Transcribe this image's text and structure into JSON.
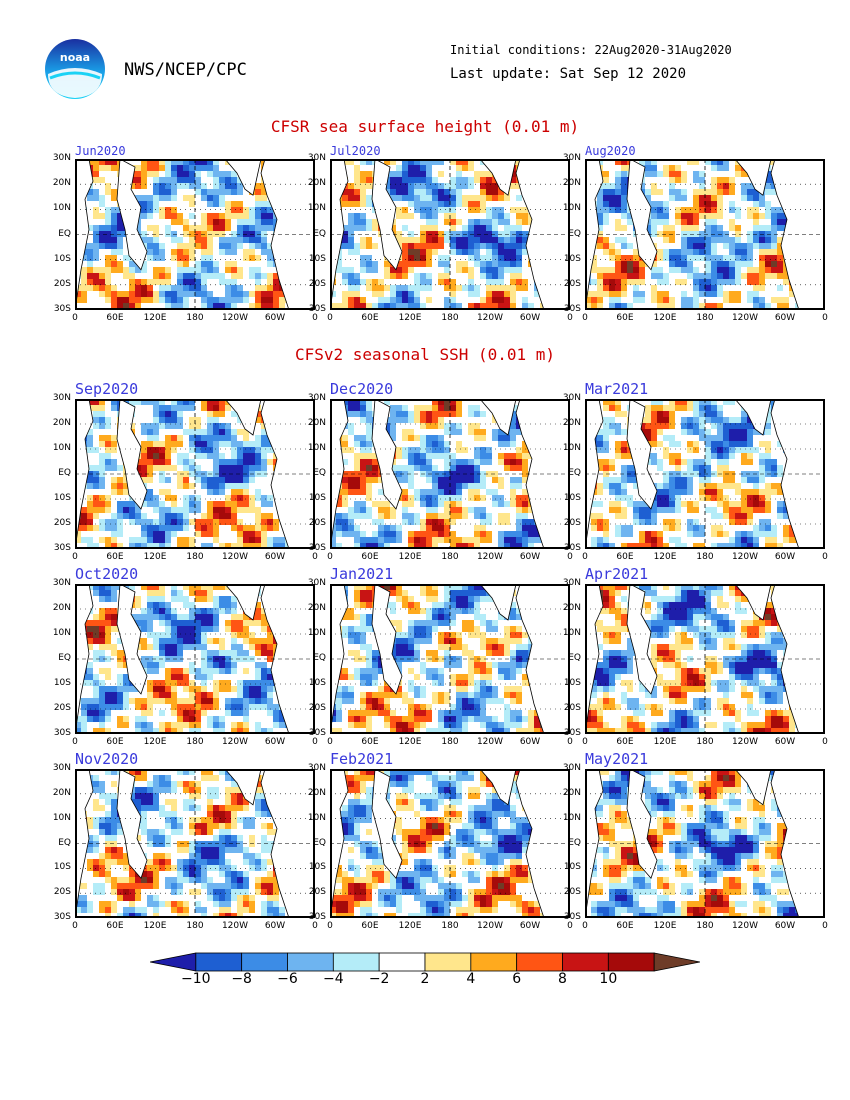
{
  "header": {
    "logo_text": "noaa",
    "agency": "NWS/NCEP/CPC",
    "initial_conditions": "Initial conditions: 22Aug2020-31Aug2020",
    "last_update": "Last update: Sat Sep 12 2020"
  },
  "sections": [
    {
      "title": "CFSR sea surface height (0.01 m)"
    },
    {
      "title": "CFSv2 seasonal SSH (0.01 m)"
    }
  ],
  "chart_data": [
    {
      "type": "heatmap",
      "title": "Jun2020",
      "field": "sea surface height anomaly",
      "units": "0.01 m",
      "xticks": [
        "0",
        "60E",
        "120E",
        "180",
        "120W",
        "60W",
        "0"
      ],
      "yticks": [
        "30N",
        "20N",
        "10N",
        "EQ",
        "10S",
        "20S",
        "30S"
      ],
      "ylim": [
        -30,
        30
      ]
    },
    {
      "type": "heatmap",
      "title": "Jul2020",
      "field": "sea surface height anomaly",
      "units": "0.01 m",
      "xticks": [
        "0",
        "60E",
        "120E",
        "180",
        "120W",
        "60W",
        "0"
      ],
      "yticks": [
        "30N",
        "20N",
        "10N",
        "EQ",
        "10S",
        "20S",
        "30S"
      ],
      "ylim": [
        -30,
        30
      ]
    },
    {
      "type": "heatmap",
      "title": "Aug2020",
      "field": "sea surface height anomaly",
      "units": "0.01 m",
      "xticks": [
        "0",
        "60E",
        "120E",
        "180",
        "120W",
        "60W",
        "0"
      ],
      "yticks": [
        "30N",
        "20N",
        "10N",
        "EQ",
        "10S",
        "20S",
        "30S"
      ],
      "ylim": [
        -30,
        30
      ]
    },
    {
      "type": "heatmap",
      "title": "Sep2020",
      "field": "forecast SSH anomaly",
      "units": "0.01 m",
      "xticks": [
        "0",
        "60E",
        "120E",
        "180",
        "120W",
        "60W",
        "0"
      ],
      "yticks": [
        "30N",
        "20N",
        "10N",
        "EQ",
        "10S",
        "20S",
        "30S"
      ],
      "ylim": [
        -30,
        30
      ]
    },
    {
      "type": "heatmap",
      "title": "Dec2020",
      "field": "forecast SSH anomaly",
      "units": "0.01 m",
      "xticks": [
        "0",
        "60E",
        "120E",
        "180",
        "120W",
        "60W",
        "0"
      ],
      "yticks": [
        "30N",
        "20N",
        "10N",
        "EQ",
        "10S",
        "20S",
        "30S"
      ],
      "ylim": [
        -30,
        30
      ]
    },
    {
      "type": "heatmap",
      "title": "Mar2021",
      "field": "forecast SSH anomaly",
      "units": "0.01 m",
      "xticks": [
        "0",
        "60E",
        "120E",
        "180",
        "120W",
        "60W",
        "0"
      ],
      "yticks": [
        "30N",
        "20N",
        "10N",
        "EQ",
        "10S",
        "20S",
        "30S"
      ],
      "ylim": [
        -30,
        30
      ]
    },
    {
      "type": "heatmap",
      "title": "Oct2020",
      "field": "forecast SSH anomaly",
      "units": "0.01 m",
      "xticks": [
        "0",
        "60E",
        "120E",
        "180",
        "120W",
        "60W",
        "0"
      ],
      "yticks": [
        "30N",
        "20N",
        "10N",
        "EQ",
        "10S",
        "20S",
        "30S"
      ],
      "ylim": [
        -30,
        30
      ]
    },
    {
      "type": "heatmap",
      "title": "Jan2021",
      "field": "forecast SSH anomaly",
      "units": "0.01 m",
      "xticks": [
        "0",
        "60E",
        "120E",
        "180",
        "120W",
        "60W",
        "0"
      ],
      "yticks": [
        "30N",
        "20N",
        "10N",
        "EQ",
        "10S",
        "20S",
        "30S"
      ],
      "ylim": [
        -30,
        30
      ]
    },
    {
      "type": "heatmap",
      "title": "Apr2021",
      "field": "forecast SSH anomaly",
      "units": "0.01 m",
      "xticks": [
        "0",
        "60E",
        "120E",
        "180",
        "120W",
        "60W",
        "0"
      ],
      "yticks": [
        "30N",
        "20N",
        "10N",
        "EQ",
        "10S",
        "20S",
        "30S"
      ],
      "ylim": [
        -30,
        30
      ]
    },
    {
      "type": "heatmap",
      "title": "Nov2020",
      "field": "forecast SSH anomaly",
      "units": "0.01 m",
      "xticks": [
        "0",
        "60E",
        "120E",
        "180",
        "120W",
        "60W",
        "0"
      ],
      "yticks": [
        "30N",
        "20N",
        "10N",
        "EQ",
        "10S",
        "20S",
        "30S"
      ],
      "ylim": [
        -30,
        30
      ]
    },
    {
      "type": "heatmap",
      "title": "Feb2021",
      "field": "forecast SSH anomaly",
      "units": "0.01 m",
      "xticks": [
        "0",
        "60E",
        "120E",
        "180",
        "120W",
        "60W",
        "0"
      ],
      "yticks": [
        "30N",
        "20N",
        "10N",
        "EQ",
        "10S",
        "20S",
        "30S"
      ],
      "ylim": [
        -30,
        30
      ]
    },
    {
      "type": "heatmap",
      "title": "May2021",
      "field": "forecast SSH anomaly",
      "units": "0.01 m",
      "xticks": [
        "0",
        "60E",
        "120E",
        "180",
        "120W",
        "60W",
        "0"
      ],
      "yticks": [
        "30N",
        "20N",
        "10N",
        "EQ",
        "10S",
        "20S",
        "30S"
      ],
      "ylim": [
        -30,
        30
      ]
    }
  ],
  "colorbar": {
    "levels": [
      -10,
      -8,
      -6,
      -4,
      -2,
      2,
      4,
      6,
      8,
      10
    ],
    "labels": [
      "−10",
      "−8",
      "−6",
      "−4",
      "−2",
      "2",
      "4",
      "6",
      "8",
      "10"
    ],
    "colors": [
      "#1e1eaa",
      "#1e5fd2",
      "#3c8ce6",
      "#6eb4f0",
      "#b4ecf8",
      "#ffffff",
      "#ffe68c",
      "#ffaa1e",
      "#ff5514",
      "#c81414",
      "#a50a0a",
      "#6e3c28"
    ]
  }
}
